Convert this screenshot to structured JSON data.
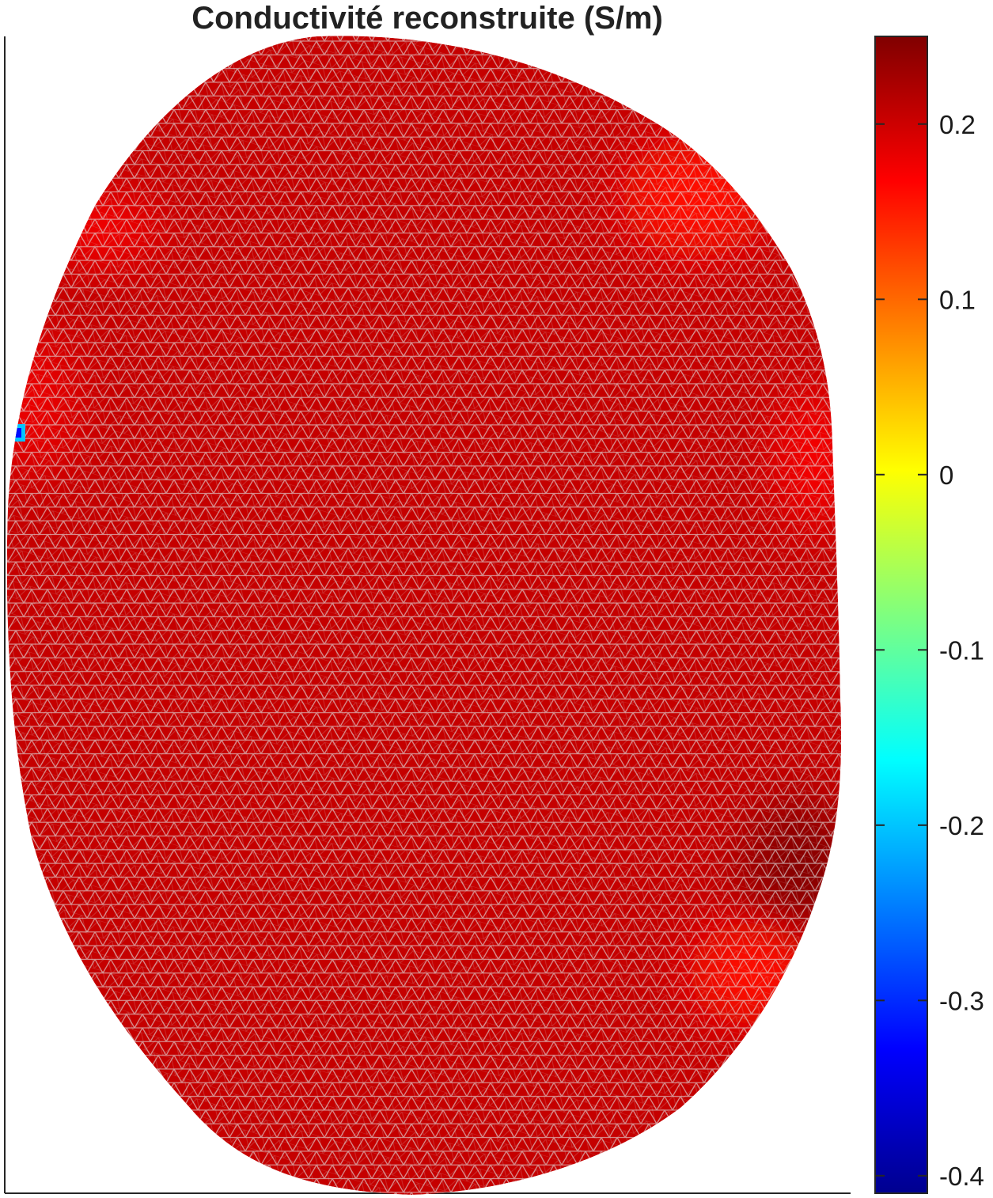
{
  "chart_data": {
    "type": "heatmap",
    "title": "Conductivité reconstruite (S/m)",
    "colormap": "jet",
    "colorbar": {
      "min": -0.41,
      "max": 0.25,
      "ticks": [
        0.2,
        0.1,
        0,
        -0.1,
        -0.2,
        -0.3,
        -0.4
      ],
      "tick_labels": [
        "0.2",
        "0.1",
        "0",
        "-0.1",
        "-0.2",
        "-0.3",
        "-0.4"
      ],
      "placement": "right"
    },
    "field": {
      "base_value": 0.205,
      "regions": [
        {
          "name": "upper-right",
          "value": 0.16
        },
        {
          "name": "upper-left",
          "value": 0.17
        },
        {
          "name": "left-edge",
          "value": 0.18
        },
        {
          "name": "right-edge",
          "value": 0.17
        },
        {
          "name": "lower-right-dark",
          "value": 0.245
        },
        {
          "name": "lower-right-bright",
          "value": 0.16
        },
        {
          "name": "left-anomaly",
          "value": -0.2
        }
      ]
    },
    "mesh": "triangular finite-element mesh",
    "grid": false
  }
}
